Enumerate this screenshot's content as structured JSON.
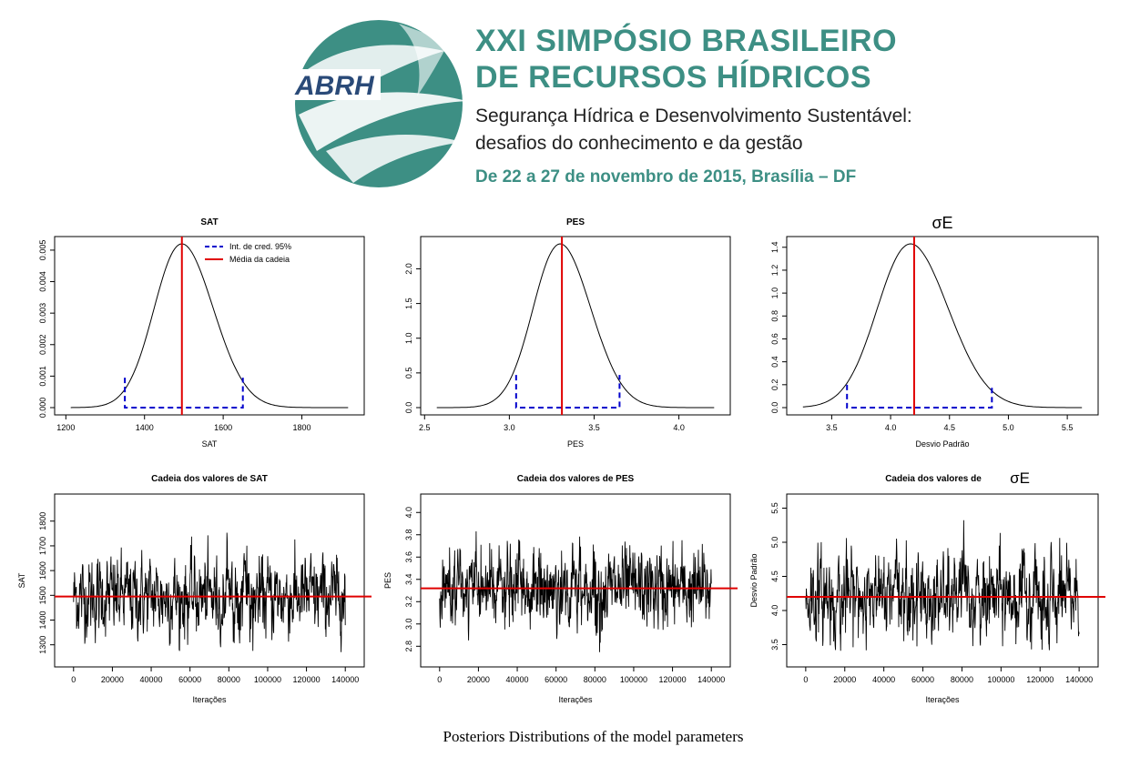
{
  "header": {
    "logo_text": "ABRH",
    "title_line1": "XXI SIMPÓSIO BRASILEIRO",
    "title_line2": "DE RECURSOS HÍDRICOS",
    "subtitle_line1": "Segurança Hídrica e Desenvolvimento Sustentável:",
    "subtitle_line2": "desafios do conhecimento e da gestão",
    "date_line": "De 22 a 27 de novembro de 2015, Brasília – DF",
    "accent_color": "#3d8f84"
  },
  "caption": "Posteriors Distributions of the model parameters",
  "legend": {
    "ci_label": "Int. de cred. 95%",
    "mean_label": "Média da cadeia",
    "ci_color": "#0000cc",
    "mean_color": "#e00000"
  },
  "chart_data": [
    {
      "type": "line",
      "title": "SAT",
      "xlabel": "SAT",
      "ylabel": "",
      "xlim": [
        1190,
        1940
      ],
      "ylim": [
        0,
        0.0052
      ],
      "xticks": [
        "1200",
        "1400",
        "1600",
        "1800"
      ],
      "yticks": [
        "0.000",
        "0.001",
        "0.002",
        "0.003",
        "0.004",
        "0.005"
      ],
      "density": {
        "mean": 1495,
        "sd": 75,
        "peak": 0.0052
      },
      "ci": [
        1350,
        1650
      ],
      "ci_height": 0.00095,
      "chain_mean": 1495,
      "legend": [
        "Int. de cred. 95%",
        "Média da cadeia"
      ]
    },
    {
      "type": "line",
      "title": "PES",
      "xlabel": "PES",
      "ylabel": "",
      "xlim": [
        2.52,
        4.26
      ],
      "ylim": [
        0,
        2.36
      ],
      "xticks": [
        "2.5",
        "3.0",
        "3.5",
        "4.0"
      ],
      "yticks": [
        "0.0",
        "0.5",
        "1.0",
        "1.5",
        "2.0"
      ],
      "density": {
        "mean": 3.3,
        "sd": 0.17,
        "peak": 2.36
      },
      "ci": [
        3.04,
        3.65
      ],
      "ci_height": 0.47,
      "chain_mean": 3.31
    },
    {
      "type": "line",
      "title": "σE",
      "xlabel": "Desvio Padrão",
      "ylabel": "",
      "xlim": [
        3.18,
        5.7
      ],
      "ylim": [
        0,
        1.43
      ],
      "xticks": [
        "3.5",
        "4.0",
        "4.5",
        "5.0",
        "5.5"
      ],
      "yticks": [
        "0.0",
        "0.2",
        "0.4",
        "0.6",
        "0.8",
        "1.0",
        "1.2",
        "1.4"
      ],
      "density": {
        "mean": 4.17,
        "sd": 0.3,
        "peak": 1.43
      },
      "ci": [
        3.63,
        4.86
      ],
      "ci_height": 0.2,
      "chain_mean": 4.2
    },
    {
      "type": "line",
      "title": "Cadeia dos valores de SAT",
      "xlabel": "Iterações",
      "ylabel": "SAT",
      "xlim": [
        -6000,
        146000
      ],
      "ylim": [
        1240,
        1880
      ],
      "xticks": [
        "0",
        "20000",
        "40000",
        "60000",
        "80000",
        "100000",
        "120000",
        "140000"
      ],
      "yticks": [
        "1300",
        "1400",
        "1500",
        "1600",
        "1700",
        "1800"
      ],
      "trace": {
        "mean": 1495,
        "sd": 75,
        "min": 1270,
        "max": 1860,
        "n": 140000
      },
      "chain_mean": 1495
    },
    {
      "type": "line",
      "title": "Cadeia dos valores de PES",
      "xlabel": "Iterações",
      "ylabel": "PES",
      "xlim": [
        -6000,
        146000
      ],
      "ylim": [
        2.68,
        4.1
      ],
      "xticks": [
        "0",
        "20000",
        "40000",
        "60000",
        "80000",
        "100000",
        "120000",
        "140000"
      ],
      "yticks": [
        "2.8",
        "3.0",
        "3.2",
        "3.4",
        "3.6",
        "3.8",
        "4.0"
      ],
      "trace": {
        "mean": 3.31,
        "sd": 0.17,
        "min": 2.72,
        "max": 4.05,
        "n": 140000
      },
      "chain_mean": 3.32
    },
    {
      "type": "line",
      "title": "Cadeia dos valores de",
      "title_symbol": "σE",
      "xlabel": "Iterações",
      "ylabel": "Desvio Padrão",
      "xlim": [
        -6000,
        146000
      ],
      "ylim": [
        3.28,
        5.6
      ],
      "xticks": [
        "0",
        "20000",
        "40000",
        "60000",
        "80000",
        "100000",
        "120000",
        "140000"
      ],
      "yticks": [
        "3.5",
        "4.0",
        "4.5",
        "5.0",
        "5.5"
      ],
      "trace": {
        "mean": 4.2,
        "sd": 0.3,
        "min": 3.4,
        "max": 5.5,
        "n": 140000
      },
      "chain_mean": 4.2
    }
  ]
}
